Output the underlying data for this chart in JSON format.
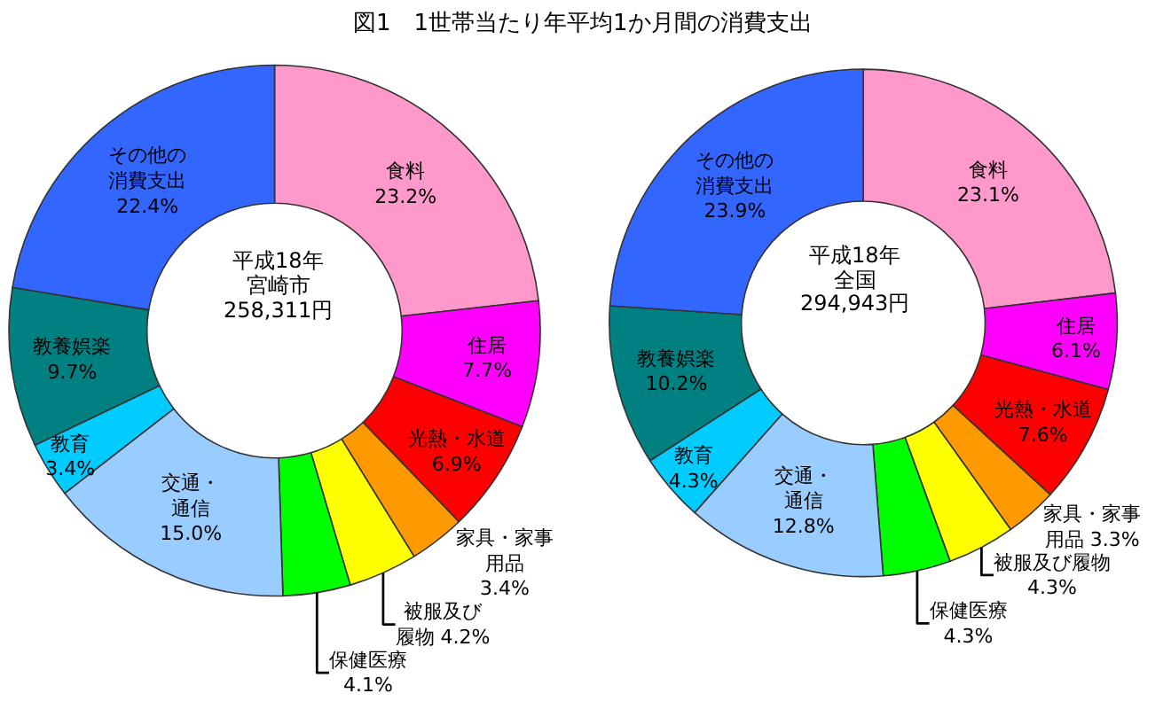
{
  "chart_data": [
    {
      "type": "donut",
      "title": "図1　1世帯当たり年平均1か月間の消費支出",
      "categories": [
        "食料",
        "住居",
        "光熱・水道",
        "家具・家事用品",
        "被服及び履物",
        "保健医療",
        "交通・通信",
        "教育",
        "教養娯楽",
        "その他の消費支出"
      ],
      "values": [
        23.2,
        7.7,
        6.9,
        3.4,
        4.2,
        4.1,
        15.0,
        3.4,
        9.7,
        22.4
      ],
      "value_labels": [
        "23.2%",
        "7.7%",
        "6.9%",
        "3.4%",
        "4.2%",
        "4.1%",
        "15.0%",
        "3.4%",
        "9.7%",
        "22.4%"
      ],
      "colors": [
        "#ff99cc",
        "#ff00ff",
        "#ff0000",
        "#ff9900",
        "#ffff00",
        "#00ff00",
        "#99ccff",
        "#00ccff",
        "#008080",
        "#3366ff"
      ],
      "annotations": [
        "平成18年",
        "宮崎市",
        "258,311円"
      ]
    },
    {
      "type": "donut",
      "categories": [
        "食料",
        "住居",
        "光熱・水道",
        "家具・家事用品",
        "被服及び履物",
        "保健医療",
        "交通・通信",
        "教育",
        "教養娯楽",
        "その他の消費支出"
      ],
      "values": [
        23.1,
        6.1,
        7.6,
        3.3,
        4.3,
        4.3,
        12.8,
        4.3,
        10.2,
        23.9
      ],
      "value_labels": [
        "23.1%",
        "6.1%",
        "7.6%",
        "3.3%",
        "4.3%",
        "4.3%",
        "12.8%",
        "4.3%",
        "10.2%",
        "23.9%"
      ],
      "colors": [
        "#ff99cc",
        "#ff00ff",
        "#ff0000",
        "#ff9900",
        "#ffff00",
        "#00ff00",
        "#99ccff",
        "#00ccff",
        "#008080",
        "#3366ff"
      ],
      "annotations": [
        "平成18年",
        "全国",
        "294,943円"
      ]
    }
  ]
}
